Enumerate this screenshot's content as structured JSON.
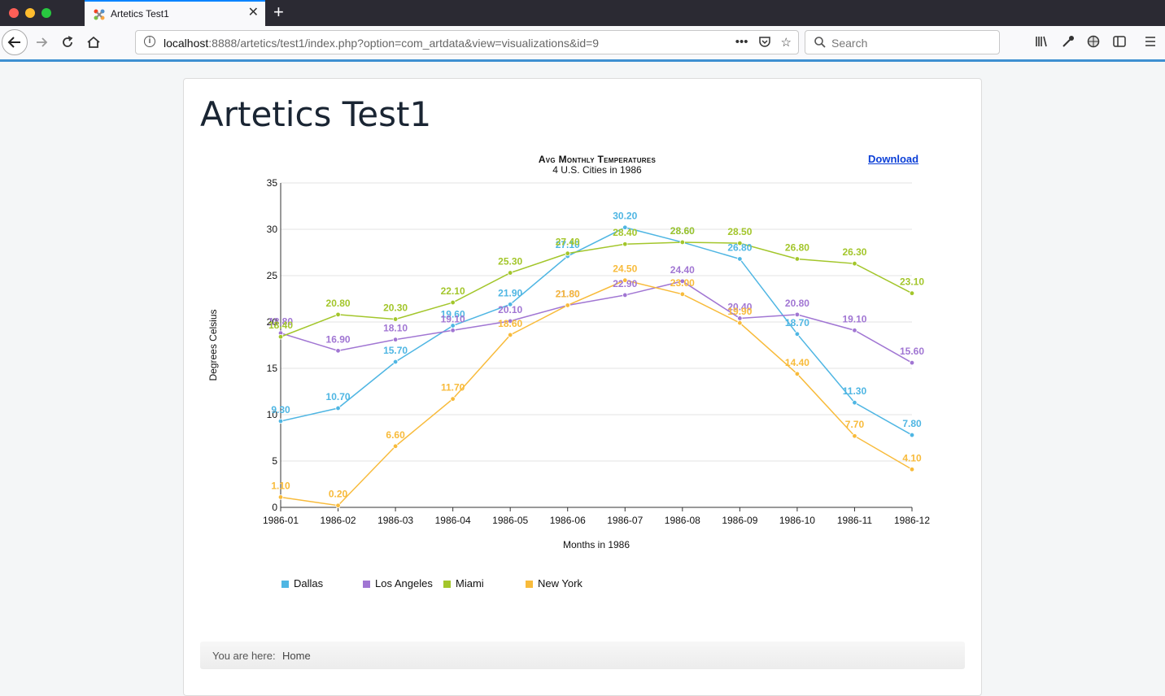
{
  "browser": {
    "tab_title": "Artetics Test1",
    "url_host": "localhost",
    "url_rest": ":8888/artetics/test1/index.php?option=com_artdata&view=visualizations&id=9",
    "search_placeholder": "Search",
    "new_tab_label": "+"
  },
  "page": {
    "title": "Artetics Test1",
    "download_label": "Download",
    "breadcrumb_label": "You are here:",
    "breadcrumb_home": "Home"
  },
  "chart_data": {
    "type": "line",
    "title": "Avg Monthly Temperatures",
    "subtitle": "4 U.S. Cities in 1986",
    "xlabel": "Months in 1986",
    "ylabel": "Degrees Celsius",
    "ylim": [
      0,
      35
    ],
    "yticks": [
      0,
      5,
      10,
      15,
      20,
      25,
      30,
      35
    ],
    "grid": true,
    "legend_position": "bottom-left",
    "categories": [
      "1986-01",
      "1986-02",
      "1986-03",
      "1986-04",
      "1986-05",
      "1986-06",
      "1986-07",
      "1986-08",
      "1986-09",
      "1986-10",
      "1986-11",
      "1986-12"
    ],
    "series": [
      {
        "name": "Dallas",
        "color": "#4fb6e3",
        "values": [
          9.3,
          10.7,
          15.7,
          19.6,
          21.9,
          27.1,
          30.2,
          28.6,
          26.8,
          18.7,
          11.3,
          7.8
        ]
      },
      {
        "name": "Los Angeles",
        "color": "#a176d3",
        "values": [
          18.8,
          16.9,
          18.1,
          19.1,
          20.1,
          21.8,
          22.9,
          24.4,
          20.4,
          20.8,
          19.1,
          15.6
        ]
      },
      {
        "name": "Miami",
        "color": "#a3c62b",
        "values": [
          18.4,
          20.8,
          20.3,
          22.1,
          25.3,
          27.4,
          28.4,
          28.6,
          28.5,
          26.8,
          26.3,
          23.1
        ]
      },
      {
        "name": "New York",
        "color": "#f8bb3b",
        "values": [
          1.1,
          0.2,
          6.6,
          11.7,
          18.6,
          21.8,
          24.5,
          23.0,
          19.9,
          14.4,
          7.7,
          4.1
        ]
      }
    ]
  }
}
